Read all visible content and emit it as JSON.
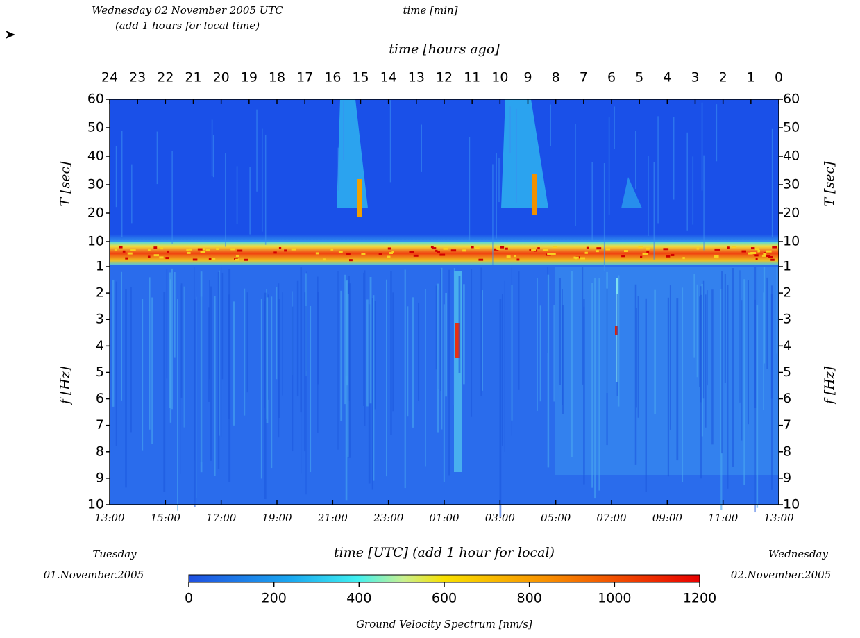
{
  "header": {
    "date": "Wednesday 02 November 2005 UTC",
    "local_note": "(add 1 hours for local time)",
    "time_min": "time [min]",
    "time_hours_ago": "time [hours ago]"
  },
  "top_axis": {
    "ticks": [
      "24",
      "23",
      "22",
      "21",
      "20",
      "19",
      "18",
      "17",
      "16",
      "15",
      "14",
      "13",
      "12",
      "11",
      "10",
      "9",
      "8",
      "7",
      "6",
      "5",
      "4",
      "3",
      "2",
      "1",
      "0"
    ]
  },
  "side_axis": {
    "period_label": "T [sec]",
    "period_ticks": [
      "60",
      "50",
      "40",
      "30",
      "20",
      "10"
    ],
    "freq_label": "f [Hz]",
    "freq_ticks": [
      "1",
      "2",
      "3",
      "4",
      "5",
      "6",
      "7",
      "8",
      "9",
      "10"
    ]
  },
  "bottom_axis": {
    "ticks": [
      "13:00",
      "15:00",
      "17:00",
      "19:00",
      "21:00",
      "23:00",
      "01:00",
      "03:00",
      "05:00",
      "07:00",
      "09:00",
      "11:00",
      "13:00"
    ],
    "label": "time [UTC] (add 1 hour for local)"
  },
  "start": {
    "day": "Tuesday",
    "date": "01.November.2005"
  },
  "end": {
    "day": "Wednesday",
    "date": "02.November.2005"
  },
  "colorbar": {
    "ticks": [
      "0",
      "200",
      "400",
      "600",
      "800",
      "1000",
      "1200"
    ],
    "label": "Ground Velocity Spectrum [nm/s]"
  }
}
